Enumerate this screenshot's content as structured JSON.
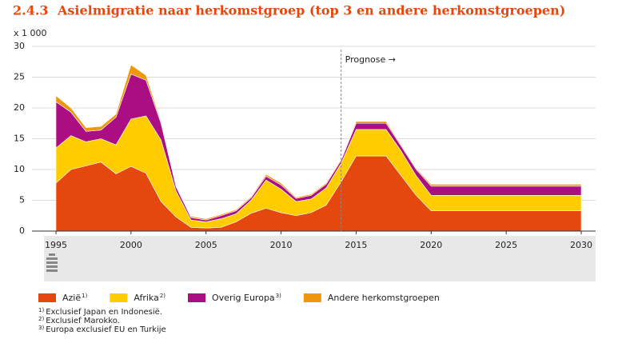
{
  "chart_data": {
    "type": "stacked_area",
    "section": "2.4.3",
    "title": "Asielmigratie naar herkomstgroep (top 3 en andere herkomstgroepen)",
    "unit_label": "x 1 000",
    "annotation": {
      "text": "Prognose →",
      "x": 2014
    },
    "x": [
      1995,
      1996,
      1997,
      1998,
      1999,
      2000,
      2001,
      2002,
      2003,
      2004,
      2005,
      2006,
      2007,
      2008,
      2009,
      2010,
      2011,
      2012,
      2013,
      2014,
      2015,
      2016,
      2017,
      2018,
      2019,
      2020,
      2021,
      2022,
      2023,
      2024,
      2025,
      2026,
      2027,
      2028,
      2029,
      2030
    ],
    "xlim": [
      1995,
      2030
    ],
    "xticks": [
      1995,
      2000,
      2005,
      2010,
      2015,
      2020,
      2025,
      2030
    ],
    "ylim": [
      0,
      30
    ],
    "yticks": [
      0,
      5,
      10,
      15,
      20,
      25,
      30
    ],
    "grid": true,
    "series": [
      {
        "name": "Azië",
        "note_ref": "1)",
        "color": "#e5480e",
        "values": [
          7.8,
          10.0,
          10.6,
          11.2,
          9.3,
          10.5,
          9.4,
          4.8,
          2.3,
          0.6,
          0.5,
          0.6,
          1.5,
          2.9,
          3.7,
          3.0,
          2.5,
          3.0,
          4.2,
          8.0,
          12.2,
          12.2,
          12.2,
          9.0,
          5.8,
          3.3,
          3.3,
          3.3,
          3.3,
          3.3,
          3.3,
          3.3,
          3.3,
          3.3,
          3.3,
          3.3
        ]
      },
      {
        "name": "Afrika",
        "note_ref": "2)",
        "color": "#ffcc00",
        "values": [
          5.7,
          5.5,
          3.9,
          3.8,
          4.7,
          7.7,
          9.3,
          10.0,
          4.2,
          1.2,
          1.0,
          1.4,
          1.3,
          2.1,
          4.6,
          3.8,
          2.3,
          2.2,
          2.8,
          3.0,
          4.3,
          4.3,
          4.3,
          4.0,
          3.2,
          2.5,
          2.5,
          2.5,
          2.5,
          2.5,
          2.5,
          2.5,
          2.5,
          2.5,
          2.5,
          2.5
        ]
      },
      {
        "name": "Overig Europa",
        "note_ref": "3)",
        "color": "#ab0d82",
        "values": [
          7.5,
          3.8,
          1.7,
          1.4,
          4.5,
          7.3,
          5.8,
          2.7,
          0.7,
          0.4,
          0.3,
          0.5,
          0.5,
          0.4,
          0.6,
          0.7,
          0.5,
          0.6,
          0.6,
          0.5,
          1.0,
          1.0,
          1.0,
          0.8,
          1.0,
          1.5,
          1.5,
          1.5,
          1.5,
          1.5,
          1.5,
          1.5,
          1.5,
          1.5,
          1.5,
          1.5
        ]
      },
      {
        "name": "Andere herkomstgroepen",
        "color": "#f0960c",
        "values": [
          1.0,
          0.7,
          0.6,
          0.6,
          0.5,
          1.5,
          0.8,
          0.3,
          0.2,
          0.2,
          0.2,
          0.2,
          0.2,
          0.2,
          0.3,
          0.3,
          0.2,
          0.2,
          0.2,
          0.2,
          0.3,
          0.3,
          0.3,
          0.2,
          0.2,
          0.3,
          0.3,
          0.3,
          0.3,
          0.3,
          0.3,
          0.3,
          0.3,
          0.3,
          0.3,
          0.3
        ]
      }
    ],
    "footnotes": [
      {
        "ref": "1)",
        "text": "Exclusief Japan en Indonesië."
      },
      {
        "ref": "2)",
        "text": "Exclusief Marokko."
      },
      {
        "ref": "3)",
        "text": "Europa exclusief EU en Turkije"
      }
    ]
  }
}
